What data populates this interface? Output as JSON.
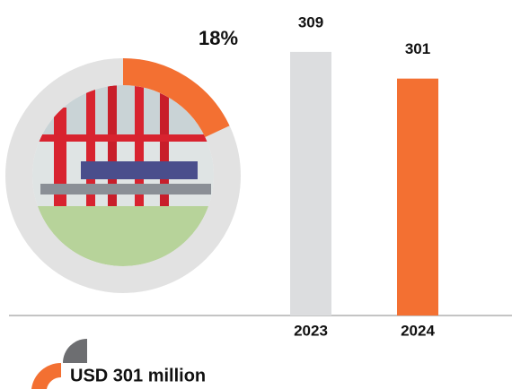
{
  "chart_data": [
    {
      "type": "donut",
      "values": [
        18
      ],
      "value_labels": [
        "18%"
      ],
      "color": "#f37032",
      "track_color": "#e2e2e2"
    },
    {
      "type": "bar",
      "categories": [
        "2023",
        "2024"
      ],
      "values": [
        309,
        301
      ],
      "colors": [
        "#dcdddf",
        "#f37032"
      ],
      "ylim": [
        230,
        313
      ],
      "annotation": "USD 301 million"
    }
  ]
}
